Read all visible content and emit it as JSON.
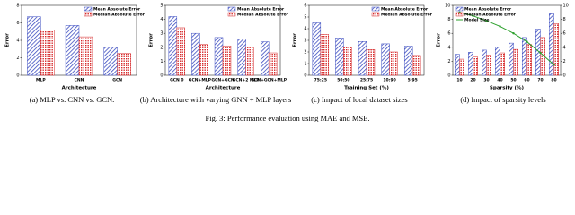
{
  "figure_caption": "Fig. 3: Performance evaluation using MAE and MSE.",
  "chart_data": [
    {
      "type": "bar",
      "caption": "(a) MLP vs. CNN vs. GCN.",
      "xlabel": "Architecture",
      "ylabel": "Error",
      "categories": [
        "MLP",
        "CNN",
        "GCN"
      ],
      "ylim": [
        0,
        8
      ],
      "yticks": [
        0,
        2,
        4,
        6,
        8
      ],
      "legend": "upper right",
      "series": [
        {
          "name": "Mean Absolute Error",
          "color": "#3b4cc0",
          "values": [
            6.7,
            5.7,
            3.2
          ]
        },
        {
          "name": "Median Absolute Error",
          "color": "#d62728",
          "values": [
            5.2,
            4.4,
            2.5
          ]
        }
      ]
    },
    {
      "type": "bar",
      "caption": "(b) Architecture with varying GNN + MLP layers",
      "xlabel": "Architecture",
      "ylabel": "Error",
      "categories": [
        "GCN 0",
        "GCN+MLP",
        "GCN+GCN",
        "GCN+2 MLP",
        "GCN+GCN+MLP"
      ],
      "ylim": [
        0,
        5
      ],
      "yticks": [
        0,
        1,
        2,
        3,
        4,
        5
      ],
      "legend": "upper right",
      "series": [
        {
          "name": "Mean Absolute Error",
          "color": "#3b4cc0",
          "values": [
            4.2,
            3.0,
            2.7,
            2.6,
            2.4
          ]
        },
        {
          "name": "Median Absolute Error",
          "color": "#d62728",
          "values": [
            3.4,
            2.2,
            2.1,
            2.0,
            1.6
          ]
        }
      ]
    },
    {
      "type": "bar",
      "caption": "(c) Impact of local dataset sizes",
      "xlabel": "Training Set (%)",
      "ylabel": "Error",
      "categories": [
        "75:25",
        "50:50",
        "25:75",
        "10:90",
        "5:95"
      ],
      "ylim": [
        0,
        6
      ],
      "yticks": [
        0,
        1,
        2,
        3,
        4,
        5,
        6
      ],
      "legend": "upper right",
      "series": [
        {
          "name": "Mean Absolute Error",
          "color": "#3b4cc0",
          "values": [
            4.5,
            3.2,
            2.9,
            2.7,
            2.5
          ]
        },
        {
          "name": "Median Absolute Error",
          "color": "#d62728",
          "values": [
            3.5,
            2.4,
            2.2,
            2.0,
            1.7
          ]
        }
      ]
    },
    {
      "type": "bar",
      "caption": "(d) Impact of sparsity levels",
      "xlabel": "Sparsity (%)",
      "ylabel": "Error",
      "categories": [
        "10",
        "20",
        "30",
        "40",
        "50",
        "60",
        "70",
        "80"
      ],
      "ylim": [
        0,
        10
      ],
      "yticks": [
        0,
        2,
        4,
        6,
        8,
        10
      ],
      "y2lim": [
        0,
        10
      ],
      "y2ticks": [
        0,
        2,
        4,
        6,
        8,
        10
      ],
      "legend": "upper left",
      "series": [
        {
          "name": "Mean Absolute Error",
          "color": "#3b4cc0",
          "values": [
            3.0,
            3.3,
            3.6,
            4.0,
            4.6,
            5.4,
            6.6,
            8.8
          ]
        },
        {
          "name": "Median Absolute Error",
          "color": "#d62728",
          "values": [
            2.3,
            2.6,
            2.9,
            3.2,
            3.7,
            4.4,
            5.4,
            7.4
          ]
        },
        {
          "name": "Model Size",
          "color": "#2ca02c",
          "axis": "y2",
          "values": [
            9.0,
            8.5,
            7.8,
            7.0,
            6.0,
            4.8,
            3.2,
            1.5
          ]
        }
      ]
    }
  ]
}
